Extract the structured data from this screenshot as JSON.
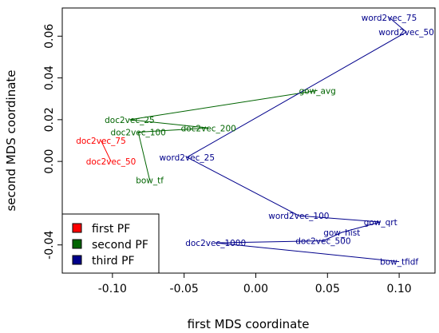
{
  "chart_data": {
    "type": "line",
    "title": "",
    "xlabel": "first MDS coordinate",
    "ylabel": "second MDS coordinate",
    "xlim": [
      -0.135,
      0.125
    ],
    "ylim": [
      -0.0535,
      0.0735
    ],
    "x_ticks": [
      {
        "value": -0.1,
        "label": "-0.10"
      },
      {
        "value": -0.05,
        "label": "-0.05"
      },
      {
        "value": 0.0,
        "label": "0.00"
      },
      {
        "value": 0.05,
        "label": "0.05"
      },
      {
        "value": 0.1,
        "label": "0.10"
      }
    ],
    "y_ticks": [
      {
        "value": -0.04,
        "label": "-0.04"
      },
      {
        "value": 0.0,
        "label": "0.00"
      },
      {
        "value": 0.02,
        "label": "0.02"
      },
      {
        "value": 0.04,
        "label": "0.04"
      },
      {
        "value": 0.06,
        "label": "0.06"
      }
    ],
    "grid": false,
    "legend_position": "bottom-left",
    "series": [
      {
        "name": "first PF",
        "color": "#ff0000",
        "points": [
          {
            "label": "doc2vec_75",
            "x": -0.108,
            "y": 0.01
          },
          {
            "label": "doc2vec_50",
            "x": -0.101,
            "y": 0.0
          }
        ]
      },
      {
        "name": "second PF",
        "color": "#006400",
        "points": [
          {
            "label": "gow_avg",
            "x": 0.043,
            "y": 0.034
          },
          {
            "label": "doc2vec_25",
            "x": -0.088,
            "y": 0.02
          },
          {
            "label": "doc2vec_200",
            "x": -0.033,
            "y": 0.016
          },
          {
            "label": "doc2vec_100",
            "x": -0.082,
            "y": 0.014
          },
          {
            "label": "bow_tf",
            "x": -0.074,
            "y": -0.009
          }
        ]
      },
      {
        "name": "third PF",
        "color": "#00008b",
        "points": [
          {
            "label": "word2vec_75",
            "x": 0.093,
            "y": 0.069
          },
          {
            "label": "word2vec_50",
            "x": 0.105,
            "y": 0.062
          },
          {
            "label": "word2vec_25",
            "x": -0.048,
            "y": 0.002
          },
          {
            "label": "word2vec_100",
            "x": 0.03,
            "y": -0.026
          },
          {
            "label": "gow_qrt",
            "x": 0.087,
            "y": -0.029
          },
          {
            "label": "gow_hist",
            "x": 0.06,
            "y": -0.034
          },
          {
            "label": "doc2vec_500",
            "x": 0.047,
            "y": -0.038
          },
          {
            "label": "doc2vec_1000",
            "x": -0.028,
            "y": -0.039
          },
          {
            "label": "bow_tfidf",
            "x": 0.1,
            "y": -0.048
          }
        ]
      }
    ]
  }
}
